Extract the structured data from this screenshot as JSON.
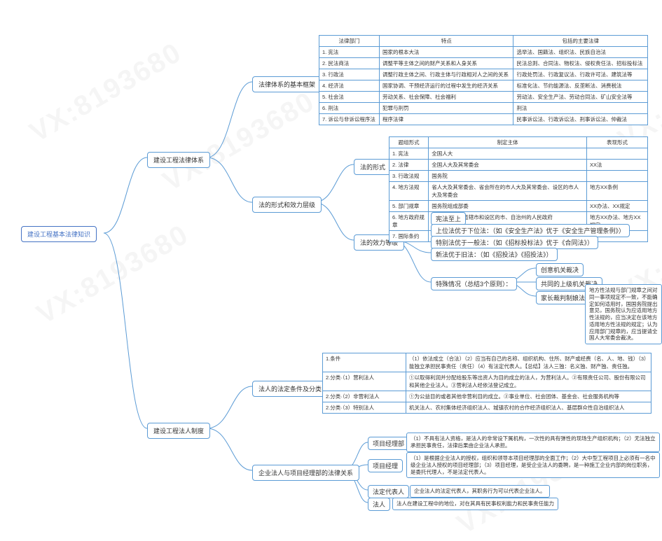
{
  "root": "建设工程基本法律知识",
  "b1": "建设工程法律体系",
  "b2": "建设工程法人制度",
  "b1_1": "法律体系的基本框架",
  "b1_2": "法的形式和效力层级",
  "b1_2_1": "法的形式",
  "b1_2_2": "法的效力等级",
  "b2_1": "法人的法定条件及分类",
  "b2_2": "企业法人与项目经理部的法律关系",
  "eff1": "宪法至上",
  "eff2": "上位法优于下位法：（如《安全生产法》优于《安全生产管理条例》）",
  "eff3": "特别法优于一般法：（如《招标投标法》优于《合同法》）",
  "eff4": "新法优于旧法：（如《招投法》《招投法》）",
  "eff5": "特殊情况（总结3个原则）：",
  "eff5a": "创意机关裁决",
  "eff5b": "共同的上级机关裁决",
  "eff5c": "家长裁判制娘法",
  "eff5c_note": "地方性法规与部门规章之间对同一事项规定不一致，不能确定如何适用时，国国务院提出意见，国务院认为应适用地方性法规的，应当决定在该地方适用地方性法规的规定；认为应用部门规章的，应当提请全国人大常委会裁决。",
  "t1": {
    "headers": [
      "法律部门",
      "特点",
      "包括的主要法律"
    ],
    "rows": [
      [
        "1. 宪法",
        "国家的根本大法",
        "选举法、国籍法、组织法、民族自治法"
      ],
      [
        "2. 民法商法",
        "调整平等主体之间的财产关系和人身关系",
        "民法总则、合同法、物权法、侵权责任法、招标投标法"
      ],
      [
        "3. 行政法",
        "调整行政主体之间、行政主体与行政相对人之间的关系",
        "行政处罚法、行政复议法、行政许可法、建筑法等"
      ],
      [
        "4. 经济法",
        "国家协调、干预经济运行的过程中发生的经济关系",
        "标准化法、节约能源法、反垄断法、消费税法"
      ],
      [
        "5. 社会法",
        "劳动关系、社会保障、社会福利",
        "劳动法、安全生产法、劳动合同法、矿山安全法等"
      ],
      [
        "6. 刑法",
        "犯罪与刑罚",
        "刑法"
      ],
      [
        "7. 诉讼与非诉讼程序法",
        "程序法律",
        "民事诉讼法、行政诉讼法、刑事诉讼法、仲裁法"
      ]
    ]
  },
  "t2": {
    "headers": [
      "题组形式",
      "制定主体",
      "表现形式"
    ],
    "rows": [
      [
        "1. 宪法",
        "全国人大",
        ""
      ],
      [
        "2. 法律",
        "全国人大及其常委会",
        "XX法"
      ],
      [
        "3. 行政法规",
        "国务院",
        ""
      ],
      [
        "4. 地方法规",
        "省人大及其常委会、省会所在的市人大及其常委会、设区的市人大及常委会",
        "地方XX条例"
      ],
      [
        "5. 部门规章",
        "国务院组成部委",
        "XX办法、XX规定"
      ],
      [
        "6. 地方政府规章",
        "省、自治区、直辖市和设区的市、自治州的人民政府",
        "地方XX办法、地方XX规定"
      ],
      [
        "7. 国际条约",
        "",
        ""
      ]
    ]
  },
  "t3": {
    "rows": [
      [
        "1.条件",
        "（1）依法成立（合法）（2）应当有自己的名称、组织机构、住所、财产或经费（名、人、地、钱）（3）能独立承担民事责任（责任）（4）有法定代表人。【总结】法人三独：名义独、财产独、责任独。"
      ],
      [
        "2.分类·（1）营利法人",
        "①以取得利润并分配给股东等出资人为目的成立的法人，为营利法人。②有限责任公司、股份有限公司和其他企业法人。③营利法人经依法登记成立。"
      ],
      [
        "2.分类·（2）非营利法人",
        "①为公益目的或者其他非营利目的成立。②事业单位、社会团体、基金会、社会服务机构等"
      ],
      [
        "2.分类·（3）特别法人",
        "机关法人、农村集体经济组织法人、城镇农村的合作经济组织法人、基层群众性自治组织法人"
      ]
    ]
  },
  "rel": {
    "r1": "项目经理部",
    "r1v": "（1）不具有法人资格，是法人的非常设下属机构，一次性的具有弹性的现场生产组织机构；（2）无法独立承担民事责任，法律后果由企业法人承担。",
    "r2": "项目经理",
    "r2v": "（1）是根据企业法人的授权，组织和领导本项目经理部的全面工作；（2）大中型工程项目上必须有一名中级企业法人授权的项目经理部；（3）项目经理，是受企业法人的委聘，是一种施工企业内部的岗位职务，是委托代理人，不是法定代表人。",
    "r3": "法定代表人",
    "r3v": "企业法人的法定代表人，其职务行为可以代表企业法人。",
    "r4": "法人",
    "r4v": "法人在建设工程中的地位，对在其具有民事权利能力和民事责任能力"
  },
  "watermark": "VX:8193680",
  "colors": {
    "border": "#5b9bd5",
    "accent": "#4472c4",
    "wm": "rgba(0,0,0,0.04)"
  }
}
